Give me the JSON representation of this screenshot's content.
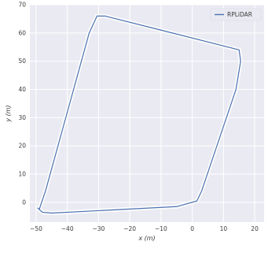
{
  "chart_data": {
    "type": "line",
    "xlabel": "x (m)",
    "ylabel": "y (m)",
    "xlim": [
      -52,
      23
    ],
    "ylim": [
      -7,
      70
    ],
    "xticks": [
      -50,
      -40,
      -30,
      -20,
      -10,
      0,
      10,
      20
    ],
    "yticks": [
      0,
      10,
      20,
      30,
      40,
      50,
      60,
      70
    ],
    "grid": true,
    "legend": "top-right",
    "colors": {
      "background": "#eaeaf2",
      "grid": "#ffffff",
      "trajectory": "#4c72b0",
      "point_cloud": "#ffffff"
    },
    "series": [
      {
        "name": "RPLiDAR",
        "x": [
          -49,
          -47,
          -42,
          -37,
          -33,
          -30.5,
          -28,
          -10,
          15,
          15.5,
          14,
          3,
          1.5,
          -5,
          -45,
          -48,
          -49.5,
          -49
        ],
        "y": [
          -2.5,
          4,
          24,
          44,
          60,
          66,
          66,
          61,
          54,
          50,
          40,
          4,
          0.5,
          -1.5,
          -3.8,
          -3.5,
          -2,
          -2.5
        ]
      }
    ]
  }
}
